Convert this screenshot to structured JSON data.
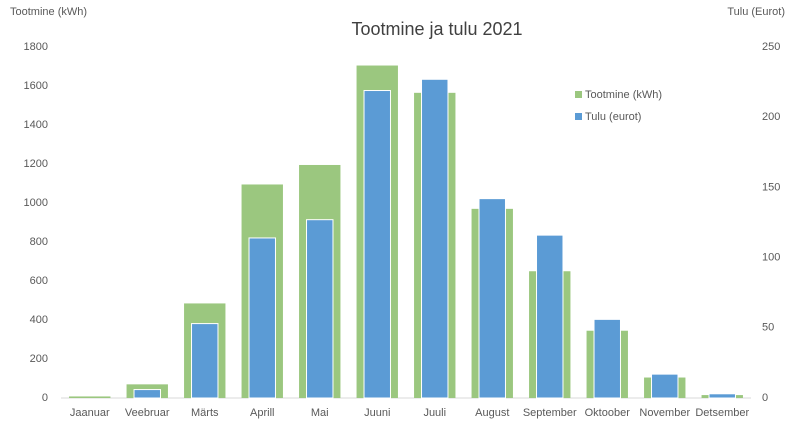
{
  "chart_data": {
    "type": "bar",
    "title": "Tootmine ja tulu 2021",
    "y_label": "Tootmine (kWh)",
    "y2_label": "Tulu (Eurot)",
    "categories": [
      "Jaanuar",
      "Veebruar",
      "Märts",
      "Aprill",
      "Mai",
      "Juuni",
      "Juuli",
      "August",
      "September",
      "Oktoober",
      "November",
      "Detsember"
    ],
    "series": [
      {
        "name": "Tootmine (kWh)",
        "color": "#9bc77f",
        "values": [
          8,
          70,
          485,
          1095,
          1195,
          1705,
          1565,
          970,
          650,
          345,
          105,
          15
        ]
      },
      {
        "name": "Tulu (eurot)",
        "color": "#5b9bd5",
        "axis": "y2",
        "values": [
          0,
          6,
          53,
          114,
          127,
          219,
          227,
          142,
          116,
          56,
          17,
          3
        ]
      }
    ],
    "ylim": [
      0,
      1800
    ],
    "yticks": [
      0,
      200,
      400,
      600,
      800,
      1000,
      1200,
      1400,
      1600,
      1800
    ],
    "y2lim": [
      0,
      250
    ],
    "y2ticks": [
      0,
      50,
      100,
      150,
      200,
      250
    ],
    "grid": false
  }
}
